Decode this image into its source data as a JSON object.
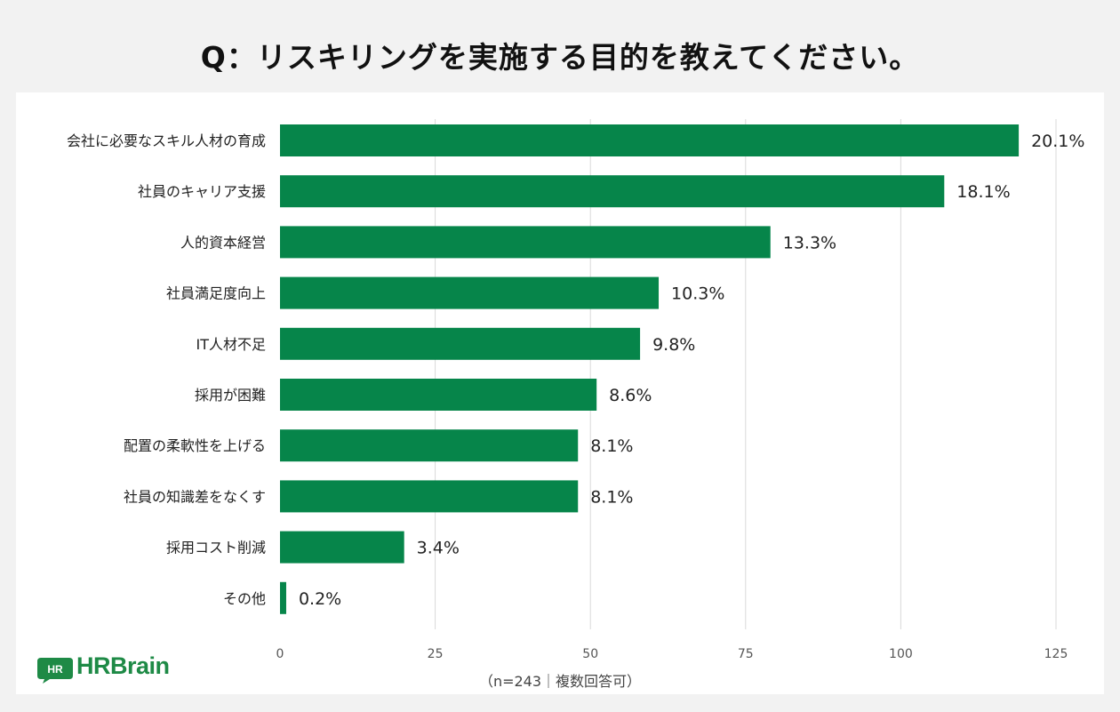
{
  "title": "Q：リスキリングを実施する目的を教えてください。",
  "note": "（n=243｜複数回答可）",
  "logo": {
    "text": "HRBrain",
    "badge": "HR"
  },
  "colors": {
    "bar": "#06854a",
    "grid": "#d9d9d9",
    "brand": "#1e8a46"
  },
  "chart_data": {
    "type": "bar",
    "orientation": "horizontal",
    "title": "Q：リスキリングを実施する目的を教えてください。",
    "categories": [
      "会社に必要なスキル人材の育成",
      "社員のキャリア支援",
      "人的資本経営",
      "社員満足度向上",
      "IT人材不足",
      "採用が困難",
      "配置の柔軟性を上げる",
      "社員の知識差をなくす",
      "採用コスト削減",
      "その他"
    ],
    "values": [
      119,
      107,
      79,
      61,
      58,
      51,
      48,
      48,
      20,
      1
    ],
    "data_labels": [
      "20.1%",
      "18.1%",
      "13.3%",
      "10.3%",
      "9.8%",
      "8.6%",
      "8.1%",
      "8.1%",
      "3.4%",
      "0.2%"
    ],
    "xlim": [
      0,
      125
    ],
    "xticks": [
      0,
      25,
      50,
      75,
      100,
      125
    ],
    "grid": true
  }
}
